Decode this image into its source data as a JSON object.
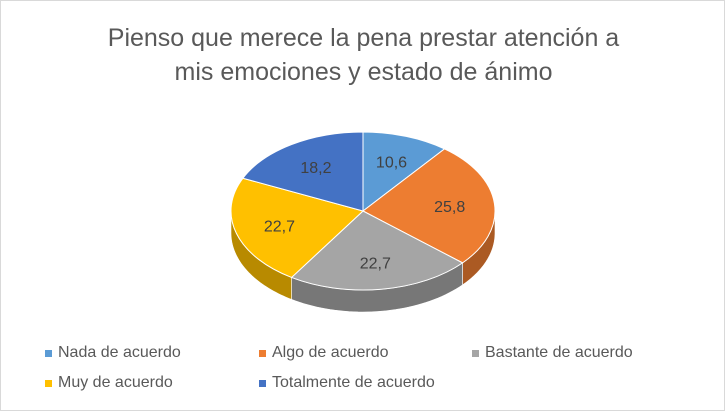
{
  "chart_data": {
    "type": "pie",
    "title_lines": [
      "Pienso que merece la pena prestar atención a",
      "mis emociones y estado de ánimo"
    ],
    "categories": [
      "Nada de acuerdo",
      "Algo de acuerdo",
      "Bastante de acuerdo",
      "Muy de acuerdo",
      "Totalmente de acuerdo"
    ],
    "values": [
      10.6,
      25.8,
      22.7,
      22.7,
      18.2
    ],
    "value_labels": [
      "10,6",
      "25,8",
      "22,7",
      "22,7",
      "18,2"
    ],
    "colors": [
      "#5B9BD5",
      "#ED7D31",
      "#A5A5A5",
      "#FFC000",
      "#4472C4"
    ],
    "legend_position": "bottom",
    "style": "3d"
  }
}
